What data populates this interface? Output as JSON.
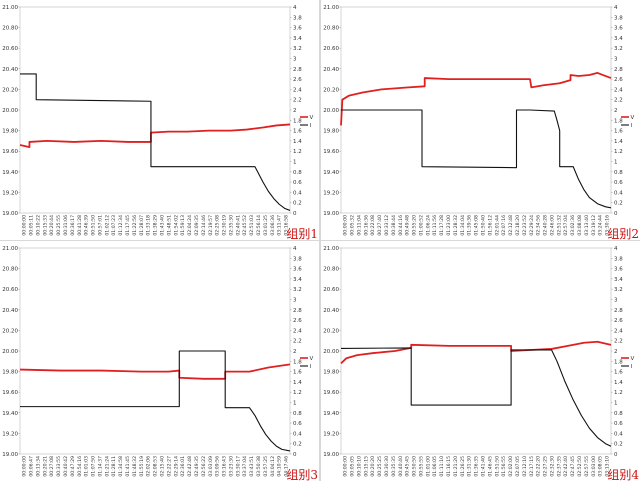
{
  "chart_data": [
    {
      "type": "line",
      "label": "组别1",
      "left_yticks": [
        "19.00",
        "19.20",
        "19.40",
        "19.60",
        "19.80",
        "20.00",
        "20.20",
        "20.40",
        "20.60",
        "20.80",
        "21.00"
      ],
      "right_yticks": [
        "0",
        "0.2",
        "0.4",
        "0.6",
        "0.8",
        "1",
        "1.2",
        "1.4",
        "1.6",
        "1.8",
        "2",
        "2.2",
        "2.4",
        "2.6",
        "2.8",
        "3",
        "3.2",
        "3.4",
        "3.6",
        "3.8",
        "4"
      ],
      "ylim_left": [
        19.0,
        21.0
      ],
      "ylim_right": [
        0,
        4
      ],
      "xlim": [
        0,
        100
      ],
      "x_labels": [
        "00:00:00",
        "00:05:11",
        "00:10:22",
        "00:15:33",
        "00:20:44",
        "00:25:55",
        "00:31:06",
        "00:36:17",
        "00:41:28",
        "00:46:39",
        "00:51:50",
        "00:57:01",
        "01:02:12",
        "01:07:23",
        "01:12:34",
        "01:17:45",
        "01:22:56",
        "01:28:07",
        "01:33:18",
        "01:38:29",
        "01:43:40",
        "01:48:51",
        "01:54:02",
        "01:59:13",
        "02:04:24",
        "02:09:35",
        "02:14:46",
        "02:19:57",
        "02:25:08",
        "02:30:19",
        "02:35:30",
        "02:40:41",
        "02:45:52",
        "02:51:03",
        "02:56:14",
        "03:01:25",
        "03:06:36",
        "03:11:47",
        "03:16:58"
      ],
      "legend": [
        "V",
        "I"
      ],
      "series": [
        {
          "name": "V",
          "color": "#e02020",
          "x": [
            0,
            3.5,
            3.5,
            10,
            20,
            30,
            40,
            48.5,
            48.5,
            55,
            62,
            70,
            78,
            84,
            90,
            95,
            100
          ],
          "y": [
            19.66,
            19.64,
            19.69,
            19.7,
            19.69,
            19.7,
            19.69,
            19.69,
            19.78,
            19.79,
            19.79,
            19.8,
            19.8,
            19.81,
            19.83,
            19.85,
            19.86
          ]
        },
        {
          "name": "I",
          "color": "#111111",
          "x": [
            0,
            6,
            6,
            48.5,
            48.5,
            87,
            88,
            90,
            92,
            94,
            96,
            98,
            100
          ],
          "y": [
            2.7,
            2.7,
            2.2,
            2.17,
            0.9,
            0.9,
            0.8,
            0.6,
            0.42,
            0.28,
            0.17,
            0.09,
            0.05
          ]
        }
      ]
    },
    {
      "type": "line",
      "label": "组别2",
      "left_yticks": [
        "19.00",
        "19.20",
        "19.40",
        "19.60",
        "19.80",
        "20.00",
        "20.20",
        "20.40",
        "20.60",
        "20.80",
        "21.00"
      ],
      "right_yticks": [
        "0",
        "0.2",
        "0.4",
        "0.6",
        "0.8",
        "1",
        "1.2",
        "1.4",
        "1.6",
        "1.8",
        "2",
        "2.2",
        "2.4",
        "2.6",
        "2.8",
        "3",
        "3.2",
        "3.4",
        "3.6",
        "3.8",
        "4"
      ],
      "ylim_left": [
        19.0,
        21.0
      ],
      "ylim_right": [
        0,
        4
      ],
      "xlim": [
        0,
        100
      ],
      "x_labels": [
        "00:00:00",
        "00:05:32",
        "00:11:04",
        "00:16:36",
        "00:22:08",
        "00:27:40",
        "00:33:12",
        "00:38:44",
        "00:44:16",
        "00:49:48",
        "00:55:20",
        "01:00:52",
        "01:06:24",
        "01:11:56",
        "01:17:28",
        "01:23:00",
        "01:28:32",
        "01:34:04",
        "01:39:36",
        "01:45:08",
        "01:50:40",
        "01:56:12",
        "02:01:44",
        "02:07:16",
        "02:12:48",
        "02:18:20",
        "02:23:52",
        "02:29:24",
        "02:34:56",
        "02:40:28",
        "02:46:00",
        "02:51:32",
        "02:57:04",
        "03:02:36",
        "03:08:08",
        "03:13:40",
        "03:19:12",
        "03:24:44",
        "03:30:16"
      ],
      "legend": [
        "V",
        "I"
      ],
      "series": [
        {
          "name": "V",
          "color": "#e02020",
          "x": [
            0,
            0.5,
            3,
            8,
            15,
            25,
            31,
            31,
            40,
            55,
            65,
            70,
            70.5,
            75,
            78,
            81,
            85,
            85,
            88,
            92,
            95,
            100
          ],
          "y": [
            19.85,
            20.1,
            20.14,
            20.17,
            20.2,
            20.22,
            20.23,
            20.31,
            20.3,
            20.3,
            20.3,
            20.3,
            20.22,
            20.24,
            20.25,
            20.26,
            20.29,
            20.34,
            20.33,
            20.34,
            20.36,
            20.31
          ]
        },
        {
          "name": "I",
          "color": "#111111",
          "x": [
            0,
            30,
            30,
            65,
            65,
            70,
            70,
            79,
            80,
            81,
            81,
            86,
            88,
            90,
            92,
            95,
            98,
            100
          ],
          "y": [
            2.0,
            2.0,
            0.9,
            0.88,
            2.0,
            2.0,
            2.0,
            1.98,
            1.8,
            1.6,
            0.9,
            0.9,
            0.65,
            0.45,
            0.3,
            0.18,
            0.12,
            0.1
          ]
        }
      ]
    },
    {
      "type": "line",
      "label": "组别3",
      "left_yticks": [
        "19.00",
        "19.20",
        "19.40",
        "19.60",
        "19.80",
        "20.00",
        "20.20",
        "20.40",
        "20.60",
        "20.80",
        "21.00"
      ],
      "right_yticks": [
        "0",
        "0.2",
        "0.4",
        "0.6",
        "0.8",
        "1",
        "1.2",
        "1.4",
        "1.6",
        "1.8",
        "2",
        "2.2",
        "2.4",
        "2.6",
        "2.8",
        "3",
        "3.2",
        "3.4",
        "3.6",
        "3.8",
        "4"
      ],
      "ylim_left": [
        19.0,
        21.0
      ],
      "ylim_right": [
        0,
        4
      ],
      "xlim": [
        0,
        100
      ],
      "x_labels": [
        "00:00:00",
        "00:06:47",
        "00:13:34",
        "00:20:21",
        "00:27:08",
        "00:33:55",
        "00:40:42",
        "00:47:29",
        "00:54:16",
        "01:01:03",
        "01:07:50",
        "01:14:37",
        "01:21:24",
        "01:28:11",
        "01:34:58",
        "01:41:45",
        "01:48:32",
        "01:55:19",
        "02:02:06",
        "02:08:53",
        "02:15:40",
        "02:22:27",
        "02:29:14",
        "02:36:01",
        "02:42:48",
        "02:49:35",
        "02:56:22",
        "03:03:09",
        "03:09:56",
        "03:16:43",
        "03:23:30",
        "03:30:17",
        "03:37:04",
        "03:43:51",
        "03:50:38",
        "03:57:25",
        "04:04:12",
        "04:10:59",
        "04:17:46"
      ],
      "legend": [
        "V",
        "I"
      ],
      "series": [
        {
          "name": "V",
          "color": "#e02020",
          "x": [
            0,
            15,
            30,
            45,
            55,
            59,
            59,
            68,
            76,
            76,
            85,
            92,
            100
          ],
          "y": [
            19.82,
            19.81,
            19.81,
            19.8,
            19.8,
            19.81,
            19.74,
            19.73,
            19.73,
            19.8,
            19.8,
            19.84,
            19.87
          ]
        },
        {
          "name": "I",
          "color": "#111111",
          "x": [
            0,
            59,
            59,
            76,
            76,
            85,
            87,
            89,
            91,
            93,
            95,
            97,
            100
          ],
          "y": [
            0.92,
            0.92,
            2.0,
            2.0,
            0.9,
            0.9,
            0.75,
            0.55,
            0.38,
            0.25,
            0.15,
            0.09,
            0.06
          ]
        }
      ]
    },
    {
      "type": "line",
      "label": "组别4",
      "left_yticks": [
        "19.00",
        "19.20",
        "19.40",
        "19.60",
        "19.80",
        "20.00",
        "20.20",
        "20.40",
        "20.60",
        "20.80",
        "21.00"
      ],
      "right_yticks": [
        "0",
        "0.2",
        "0.4",
        "0.6",
        "0.8",
        "1",
        "1.2",
        "1.4",
        "1.6",
        "1.8",
        "2",
        "2.2",
        "2.4",
        "2.6",
        "2.8",
        "3",
        "3.2",
        "3.4",
        "3.6",
        "3.8",
        "4"
      ],
      "ylim_left": [
        19.0,
        21.0
      ],
      "ylim_right": [
        0,
        4
      ],
      "xlim": [
        0,
        100
      ],
      "x_labels": [
        "00:00:00",
        "00:05:05",
        "00:10:10",
        "00:15:15",
        "00:20:20",
        "00:25:25",
        "00:30:30",
        "00:35:35",
        "00:40:40",
        "00:45:45",
        "00:50:50",
        "00:55:55",
        "01:01:00",
        "01:06:05",
        "01:11:10",
        "01:16:15",
        "01:21:20",
        "01:26:25",
        "01:31:30",
        "01:36:35",
        "01:41:40",
        "01:46:45",
        "01:51:50",
        "01:56:55",
        "02:02:00",
        "02:07:05",
        "02:12:10",
        "02:17:15",
        "02:22:20",
        "02:27:25",
        "02:32:30",
        "02:37:35",
        "02:42:40",
        "02:47:45",
        "02:52:50",
        "02:57:55",
        "03:03:00",
        "03:08:05",
        "03:13:10"
      ],
      "legend": [
        "V",
        "I"
      ],
      "series": [
        {
          "name": "V",
          "color": "#e02020",
          "x": [
            0,
            2,
            6,
            12,
            20,
            26,
            26,
            40,
            55,
            63,
            63,
            70,
            78,
            84,
            90,
            95,
            100
          ],
          "y": [
            19.88,
            19.93,
            19.96,
            19.98,
            20.0,
            20.03,
            20.06,
            20.05,
            20.05,
            20.05,
            20.0,
            20.01,
            20.02,
            20.05,
            20.08,
            20.09,
            20.06
          ]
        },
        {
          "name": "I",
          "color": "#111111",
          "x": [
            0,
            26,
            26,
            63,
            63,
            78,
            80,
            83,
            86,
            89,
            92,
            95,
            98,
            100
          ],
          "y": [
            2.05,
            2.06,
            0.95,
            0.95,
            2.02,
            2.02,
            1.8,
            1.4,
            1.05,
            0.75,
            0.5,
            0.32,
            0.2,
            0.15
          ]
        }
      ]
    }
  ]
}
